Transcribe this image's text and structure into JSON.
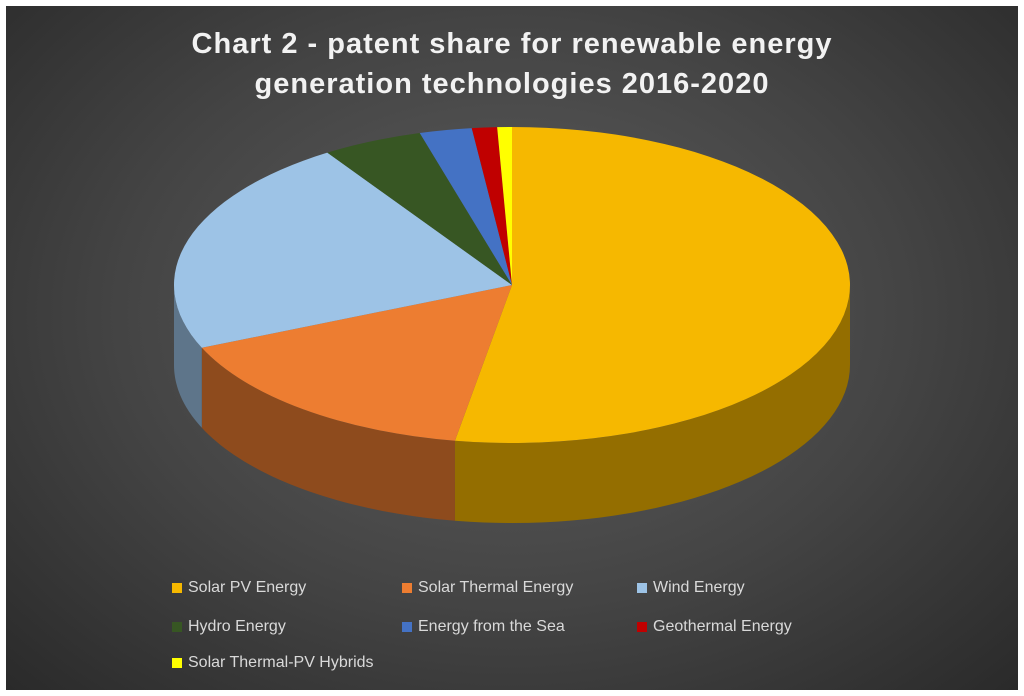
{
  "chart_data": {
    "type": "pie",
    "title": "Chart 2 - patent share for renewable energy generation technologies 2016-2020",
    "series": [
      {
        "name": "Solar PV Energy",
        "color": "#f6b800",
        "values": [
          52.7
        ]
      },
      {
        "name": "Solar Thermal Energy",
        "color": "#ed7d31",
        "values": [
          15.8
        ]
      },
      {
        "name": "Wind Energy",
        "color": "#9dc3e6",
        "values": [
          22.3
        ]
      },
      {
        "name": "Hydro Energy",
        "color": "#375623",
        "values": [
          4.8
        ]
      },
      {
        "name": "Energy from the Sea",
        "color": "#4472c4",
        "values": [
          2.5
        ]
      },
      {
        "name": "Geothermal Energy",
        "color": "#c00000",
        "values": [
          1.2
        ]
      },
      {
        "name": "Solar Thermal-PV Hybrids",
        "color": "#ffff00",
        "values": [
          0.7
        ]
      }
    ],
    "legend": "bottom"
  }
}
